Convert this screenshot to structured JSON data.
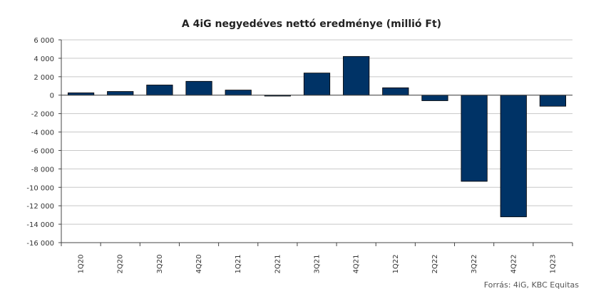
{
  "chart_data": {
    "type": "bar",
    "title": "A 4iG negyedéves nettó eredménye  (millió Ft)",
    "categories": [
      "1Q20",
      "2Q20",
      "3Q20",
      "4Q20",
      "1Q21",
      "2Q21",
      "3Q21",
      "4Q21",
      "1Q22",
      "2Q22",
      "3Q22",
      "4Q22",
      "1Q23"
    ],
    "values": [
      250,
      400,
      1100,
      1500,
      550,
      -100,
      2400,
      4200,
      800,
      -600,
      -9350,
      -13200,
      -1200
    ],
    "ylim": [
      -16000,
      6000
    ],
    "yticks": [
      6000,
      4000,
      2000,
      0,
      -2000,
      -4000,
      -6000,
      -8000,
      -10000,
      -12000,
      -14000,
      -16000
    ],
    "ytick_labels": [
      "6 000",
      "4 000",
      "2 000",
      "0",
      "-2 000",
      "-4 000",
      "-6 000",
      "-8 000",
      "-10 000",
      "-12 000",
      "-14 000",
      "-16 000"
    ],
    "grid": true,
    "bar_color": "#003366",
    "source": "Forrás: 4iG, KBC Equitas"
  }
}
